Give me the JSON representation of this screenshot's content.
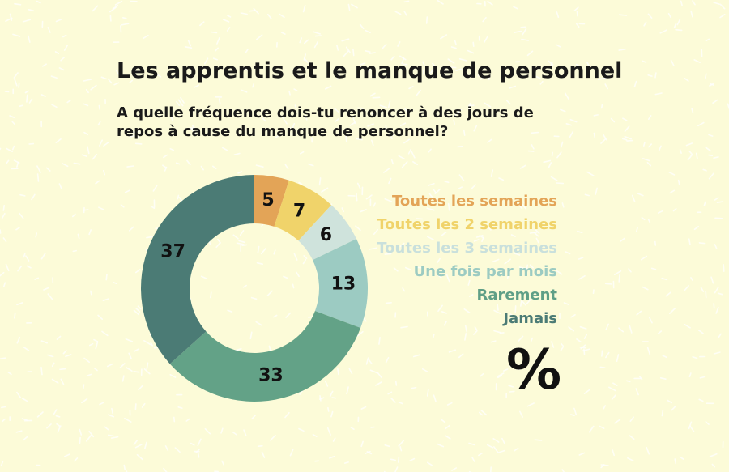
{
  "chart_data": {
    "type": "pie",
    "title": "Les apprentis et le manque de personnel",
    "subtitle": "A quelle fréquence dois-tu renoncer à des jours de repos à cause du manque de personnel?",
    "unit": "%",
    "legend_position": "right",
    "categories": [
      "Toutes les semaines",
      "Toutes les 2 semaines",
      "Toutes les 3 semaines",
      "Une fois par mois",
      "Rarement",
      "Jamais"
    ],
    "values": [
      5,
      7,
      6,
      13,
      33,
      37
    ],
    "colors": [
      "#e3a457",
      "#f0d36a",
      "#cfe3dc",
      "#9ccbc2",
      "#63a287",
      "#4b7b75"
    ],
    "legend_colors": [
      "#e3a457",
      "#f0d36a",
      "#c9e0dc",
      "#9ccbc2",
      "#5f9f86",
      "#4b7b75"
    ]
  }
}
